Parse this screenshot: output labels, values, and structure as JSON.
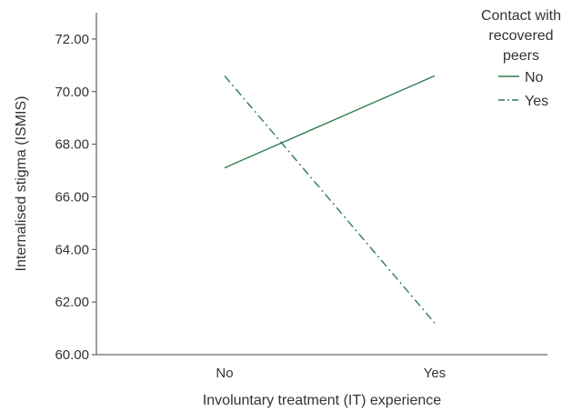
{
  "chart_data": {
    "type": "line",
    "categories": [
      "No",
      "Yes"
    ],
    "xlabel": "Involuntary treatment (IT) experience",
    "ylabel": "Internalised stigma (ISMIS)",
    "ylim": [
      60.0,
      73.0
    ],
    "yticks": [
      "60.00",
      "62.00",
      "64.00",
      "66.00",
      "68.00",
      "70.00",
      "72.00"
    ],
    "grid": false,
    "legend": {
      "title_lines": [
        "Contact with",
        "recovered",
        "peers"
      ],
      "placement": "top-right"
    },
    "series": [
      {
        "name": "No",
        "values": [
          67.1,
          70.6
        ],
        "color": "#2e7d4f",
        "dash": "solid"
      },
      {
        "name": "Yes",
        "values": [
          70.6,
          61.2
        ],
        "color": "#2e7d4f",
        "dash": "dashdot"
      }
    ]
  }
}
